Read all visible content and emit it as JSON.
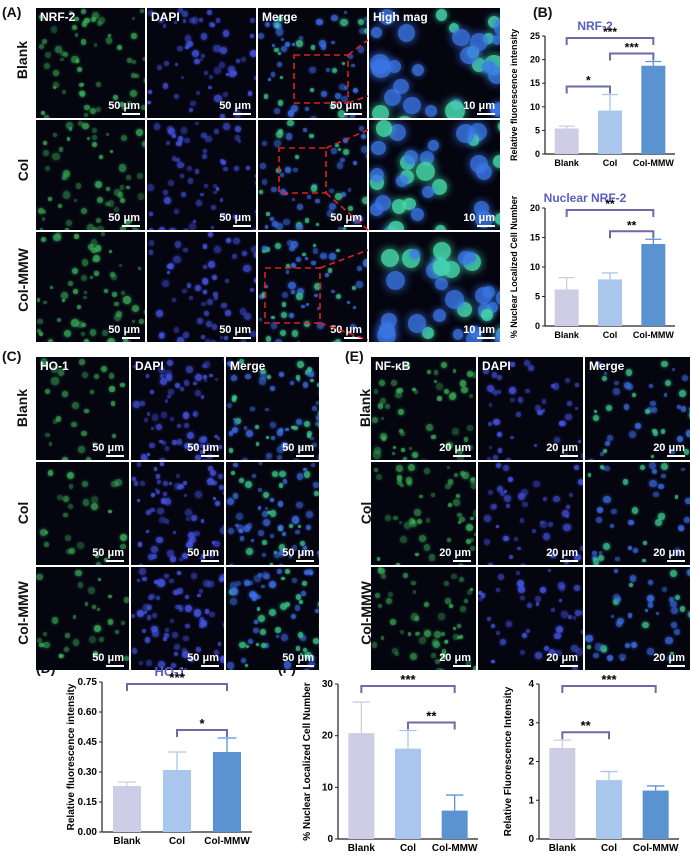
{
  "panels": {
    "A": {
      "label": "(A)",
      "columns": [
        "NRF-2",
        "DAPI",
        "Merge",
        "High mag"
      ],
      "rows": [
        "Blank",
        "Col",
        "Col-MMW"
      ],
      "scale_main": "50 μm",
      "scale_mag": "10 μm"
    },
    "B": {
      "label": "(B)"
    },
    "C": {
      "label": "(C)",
      "columns": [
        "HO-1",
        "DAPI",
        "Merge"
      ],
      "rows": [
        "Blank",
        "Col",
        "Col-MMW"
      ],
      "scale": "50 μm"
    },
    "D": {
      "label": "(D)"
    },
    "E": {
      "label": "(E)",
      "columns": [
        "NF-κB",
        "DAPI",
        "Merge"
      ],
      "rows": [
        "Blank",
        "Col",
        "Col-MMW"
      ],
      "scale": "20 μm"
    },
    "F": {
      "label": "(F)"
    }
  },
  "colors": {
    "blank": "#cfcde6",
    "col": "#a9c7ec",
    "colmmw": "#5b93d1",
    "title": "#5a5fc0",
    "bracket": "#6d6aa6",
    "green": "#3fb35a",
    "blue": "#3a4bd8",
    "dashed": "#e02020"
  },
  "chart_data": [
    {
      "id": "B1",
      "type": "bar",
      "title": "NRF-2",
      "ylabel": "Relative fluorescence intensity",
      "categories": [
        "Blank",
        "Col",
        "Col-MMW"
      ],
      "values": [
        5.4,
        9.2,
        18.7
      ],
      "errors": [
        0.5,
        3.4,
        0.9
      ],
      "ylim": [
        0,
        25
      ],
      "yticks": [
        "0",
        "5",
        "10",
        "15",
        "20",
        "25"
      ],
      "significance": [
        {
          "from": 0,
          "to": 1,
          "label": "*"
        },
        {
          "from": 1,
          "to": 2,
          "label": "***"
        },
        {
          "from": 0,
          "to": 2,
          "label": "***"
        }
      ]
    },
    {
      "id": "B2",
      "type": "bar",
      "title": "Nuclear NRF-2",
      "ylabel": "% Nuclear Localized Cell Number",
      "categories": [
        "Blank",
        "Col",
        "Col-MMW"
      ],
      "values": [
        6.2,
        7.9,
        13.9
      ],
      "errors": [
        2.0,
        1.1,
        0.8
      ],
      "ylim": [
        0,
        20
      ],
      "yticks": [
        "0",
        "5",
        "10",
        "15",
        "20"
      ],
      "significance": [
        {
          "from": 1,
          "to": 2,
          "label": "**"
        },
        {
          "from": 0,
          "to": 2,
          "label": "**"
        }
      ]
    },
    {
      "id": "D",
      "type": "bar",
      "title": "HO-1",
      "ylabel": "Relative fluorescence intensity",
      "categories": [
        "Blank",
        "Col",
        "Col-MMW"
      ],
      "values": [
        0.23,
        0.31,
        0.4
      ],
      "errors": [
        0.02,
        0.09,
        0.07
      ],
      "ylim": [
        0,
        0.75
      ],
      "yticks": [
        "0.00",
        "0.15",
        "0.30",
        "0.45",
        "0.60",
        "0.75"
      ],
      "significance": [
        {
          "from": 1,
          "to": 2,
          "label": "*"
        },
        {
          "from": 0,
          "to": 2,
          "label": "***"
        }
      ]
    },
    {
      "id": "F1",
      "type": "bar",
      "title": "",
      "ylabel": "% Nuclear Localized Cell Number",
      "categories": [
        "Blank",
        "Col",
        "Col-MMW"
      ],
      "values": [
        20.5,
        17.5,
        5.5
      ],
      "errors": [
        6.0,
        3.5,
        3.0
      ],
      "ylim": [
        0,
        30
      ],
      "yticks": [
        "0",
        "10",
        "20",
        "30"
      ],
      "significance": [
        {
          "from": 1,
          "to": 2,
          "label": "**"
        },
        {
          "from": 0,
          "to": 2,
          "label": "***"
        }
      ]
    },
    {
      "id": "F2",
      "type": "bar",
      "title": "",
      "ylabel": "Relative Fluorescence Intensity",
      "categories": [
        "Blank",
        "Col",
        "Col-MMW"
      ],
      "values": [
        2.35,
        1.52,
        1.25
      ],
      "errors": [
        0.2,
        0.22,
        0.12
      ],
      "ylim": [
        0,
        4
      ],
      "yticks": [
        "0",
        "1",
        "2",
        "3",
        "4"
      ],
      "significance": [
        {
          "from": 0,
          "to": 1,
          "label": "**"
        },
        {
          "from": 0,
          "to": 2,
          "label": "***"
        }
      ]
    }
  ]
}
